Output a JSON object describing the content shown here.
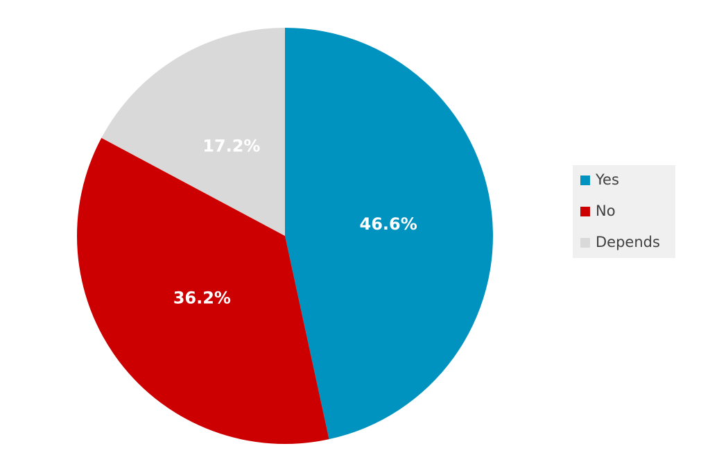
{
  "chart_data": {
    "type": "pie",
    "categories": [
      "Yes",
      "No",
      "Depends"
    ],
    "values": [
      46.6,
      36.2,
      17.2
    ],
    "value_labels": [
      "46.6%",
      "36.2%",
      "17.2%"
    ],
    "colors": [
      "#0093c0",
      "#cc0000",
      "#d9d9d9"
    ],
    "legend": "right"
  }
}
